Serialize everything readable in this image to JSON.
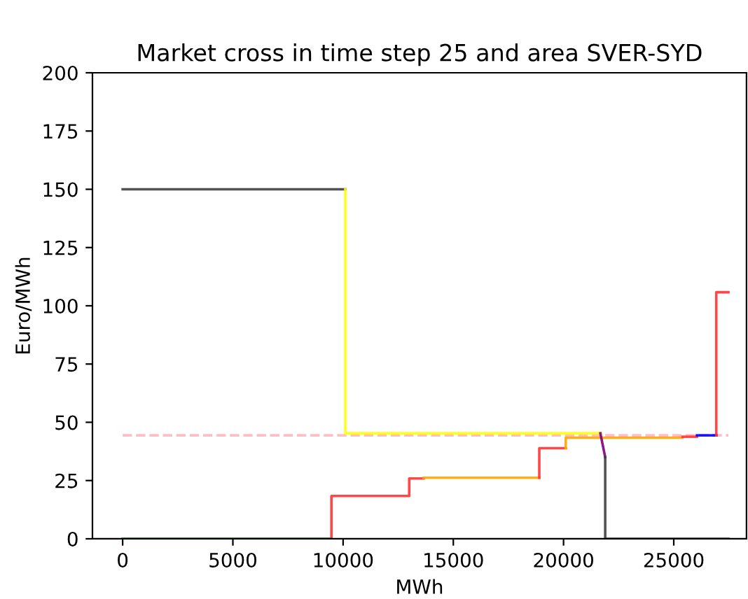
{
  "chart_data": {
    "type": "line",
    "title": "Market cross in time step 25 and area SVER-SYD",
    "xlabel": "MWh",
    "ylabel": "Euro/MWh",
    "xlim": [
      -1370,
      28300
    ],
    "xticks": [
      0,
      5000,
      10000,
      15000,
      20000,
      25000
    ],
    "ylim": [
      0,
      200
    ],
    "yticks": [
      0,
      25,
      50,
      75,
      100,
      125,
      150,
      175,
      200
    ],
    "grid": false,
    "marker": "none",
    "line_style": "solid",
    "series": [
      {
        "color": "#ffb6c1",
        "line_style": "dashed",
        "x": [
          0,
          27480
        ],
        "values": [
          44.4,
          44.4
        ]
      },
      {
        "color": "#404040",
        "x": [
          0,
          10100
        ],
        "values": [
          150,
          150
        ]
      },
      {
        "color": "#ffff00",
        "x": [
          10100,
          10100,
          21700
        ],
        "values": [
          150,
          45.3,
          45.3
        ]
      },
      {
        "color": "#008000",
        "x": [
          0,
          9470
        ],
        "values": [
          0,
          0
        ]
      },
      {
        "color": "#ff3333",
        "x": [
          9470,
          9470,
          13000,
          13000,
          13650
        ],
        "values": [
          0,
          18.4,
          18.4,
          25.9,
          25.9
        ]
      },
      {
        "color": "#ffa500",
        "x": [
          13650,
          18900
        ],
        "values": [
          26.2,
          26.2
        ]
      },
      {
        "color": "#ff3333",
        "x": [
          18900,
          18900,
          20100
        ],
        "values": [
          26.2,
          38.9,
          38.9
        ]
      },
      {
        "color": "#ffa500",
        "x": [
          20100,
          20100,
          25400
        ],
        "values": [
          38.9,
          43.4,
          43.4
        ]
      },
      {
        "color": "#ff3333",
        "x": [
          25400,
          26050
        ],
        "values": [
          43.8,
          43.8
        ]
      },
      {
        "color": "#0000ff",
        "x": [
          26050,
          26930
        ],
        "values": [
          44.4,
          44.4
        ]
      },
      {
        "color": "#ff3333",
        "x": [
          26930,
          26930,
          27480
        ],
        "values": [
          44.4,
          105.8,
          105.8
        ]
      },
      {
        "color": "#800080",
        "x": [
          21670,
          21890
        ],
        "values": [
          45.3,
          35
        ]
      },
      {
        "color": "#404040",
        "x": [
          21890,
          21890,
          27480
        ],
        "values": [
          35,
          0,
          0
        ]
      }
    ]
  }
}
